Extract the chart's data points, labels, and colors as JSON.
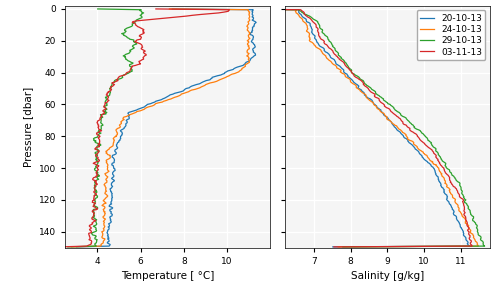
{
  "colors": {
    "20-10-13": "#1f77b4",
    "24-10-13": "#ff7f0e",
    "29-10-13": "#2ca02c",
    "03-11-13": "#d62728"
  },
  "legend_labels": [
    "20-10-13",
    "24-10-13",
    "29-10-13",
    "03-11-13"
  ],
  "temp_xlabel": "Temperature [ °C]",
  "sal_xlabel": "Salinity [g/kg]",
  "ylabel": "Pressure [dbar]",
  "temp_xlim": [
    2.5,
    12.0
  ],
  "sal_xlim": [
    6.2,
    11.8
  ],
  "ylim": [
    150,
    -2
  ],
  "temp_xticks": [
    4,
    6,
    8,
    10
  ],
  "sal_xticks": [
    7,
    8,
    9,
    10,
    11
  ],
  "yticks": [
    0,
    20,
    40,
    60,
    80,
    100,
    120,
    140
  ],
  "background_color": "#f5f5f5",
  "grid_color": "white",
  "linewidth": 0.9
}
